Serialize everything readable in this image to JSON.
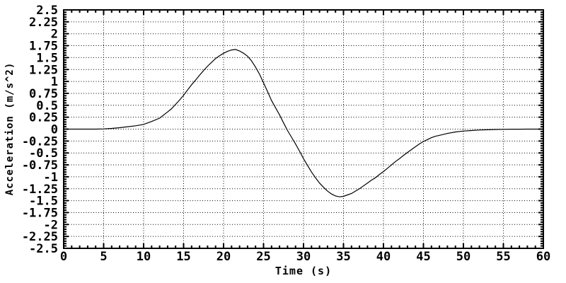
{
  "figure": {
    "background": "#ffffff",
    "line_color": "#000000",
    "grid_color": "#000000",
    "text_color": "#000000"
  },
  "chart_data": {
    "type": "line",
    "title": "",
    "xlabel": "Time (s)",
    "ylabel": "Acceleration (m/s^2)",
    "xlim": [
      0,
      60
    ],
    "ylim": [
      -2.5,
      2.5
    ],
    "x_major_step": 5,
    "x_minor_step": 1,
    "y_major_step": 0.25,
    "y_minor_step": 0.05,
    "grid": "dotted at major ticks, both axes",
    "legend": "none",
    "xticks": [
      "0",
      "5",
      "10",
      "15",
      "20",
      "25",
      "30",
      "35",
      "40",
      "45",
      "50",
      "55",
      "60"
    ],
    "yticks": [
      "2.5",
      "2.25",
      "2",
      "1.75",
      "1.5",
      "1.25",
      "1",
      "0.75",
      "0.5",
      "0.25",
      "0",
      "-0.25",
      "-0.5",
      "-0.75",
      "-1",
      "-1.25",
      "-1.5",
      "-1.75",
      "-2",
      "-2.25",
      "-2.5"
    ],
    "series": [
      {
        "name": "acceleration",
        "color": "#000000",
        "points": [
          [
            0,
            0
          ],
          [
            1,
            0
          ],
          [
            2,
            0
          ],
          [
            3,
            0
          ],
          [
            4,
            0
          ],
          [
            5,
            0.005
          ],
          [
            6,
            0.015
          ],
          [
            7,
            0.03
          ],
          [
            8,
            0.05
          ],
          [
            9,
            0.07
          ],
          [
            10,
            0.1
          ],
          [
            11,
            0.16
          ],
          [
            12,
            0.23
          ],
          [
            13,
            0.36
          ],
          [
            13.5,
            0.43
          ],
          [
            14,
            0.52
          ],
          [
            14.5,
            0.61
          ],
          [
            15,
            0.71
          ],
          [
            15.5,
            0.82
          ],
          [
            16,
            0.93
          ],
          [
            16.5,
            1.03
          ],
          [
            17,
            1.13
          ],
          [
            17.5,
            1.23
          ],
          [
            18,
            1.32
          ],
          [
            18.5,
            1.4
          ],
          [
            19,
            1.48
          ],
          [
            19.5,
            1.54
          ],
          [
            20,
            1.59
          ],
          [
            20.5,
            1.63
          ],
          [
            21,
            1.66
          ],
          [
            21.5,
            1.67
          ],
          [
            22,
            1.64
          ],
          [
            22.5,
            1.59
          ],
          [
            23,
            1.53
          ],
          [
            23.5,
            1.43
          ],
          [
            24,
            1.3
          ],
          [
            24.5,
            1.15
          ],
          [
            25,
            0.97
          ],
          [
            25.5,
            0.79
          ],
          [
            26,
            0.6
          ],
          [
            26.5,
            0.45
          ],
          [
            27,
            0.3
          ],
          [
            27.5,
            0.13
          ],
          [
            28,
            -0.03
          ],
          [
            28.5,
            -0.17
          ],
          [
            29,
            -0.31
          ],
          [
            29.5,
            -0.46
          ],
          [
            30,
            -0.62
          ],
          [
            30.5,
            -0.76
          ],
          [
            31,
            -0.9
          ],
          [
            31.5,
            -1.02
          ],
          [
            32,
            -1.13
          ],
          [
            32.5,
            -1.22
          ],
          [
            33,
            -1.3
          ],
          [
            33.5,
            -1.36
          ],
          [
            34,
            -1.4
          ],
          [
            34.5,
            -1.42
          ],
          [
            35,
            -1.41
          ],
          [
            35.5,
            -1.38
          ],
          [
            36,
            -1.35
          ],
          [
            36.5,
            -1.3
          ],
          [
            37,
            -1.25
          ],
          [
            37.5,
            -1.19
          ],
          [
            38,
            -1.13
          ],
          [
            38.5,
            -1.07
          ],
          [
            39,
            -1.02
          ],
          [
            39.5,
            -0.95
          ],
          [
            40,
            -0.89
          ],
          [
            40.5,
            -0.82
          ],
          [
            41,
            -0.75
          ],
          [
            41.5,
            -0.68
          ],
          [
            42,
            -0.62
          ],
          [
            42.5,
            -0.55
          ],
          [
            43,
            -0.49
          ],
          [
            43.5,
            -0.43
          ],
          [
            44,
            -0.37
          ],
          [
            44.5,
            -0.31
          ],
          [
            45,
            -0.26
          ],
          [
            45.5,
            -0.22
          ],
          [
            46,
            -0.18
          ],
          [
            46.5,
            -0.15
          ],
          [
            47,
            -0.13
          ],
          [
            47.5,
            -0.11
          ],
          [
            48,
            -0.09
          ],
          [
            49,
            -0.06
          ],
          [
            50,
            -0.04
          ],
          [
            51,
            -0.03
          ],
          [
            52,
            -0.02
          ],
          [
            53,
            -0.013
          ],
          [
            54,
            -0.008
          ],
          [
            55,
            -0.004
          ],
          [
            56,
            -0.002
          ],
          [
            57,
            -0.001
          ],
          [
            58,
            0
          ],
          [
            59,
            0
          ],
          [
            60,
            0
          ]
        ]
      }
    ]
  }
}
